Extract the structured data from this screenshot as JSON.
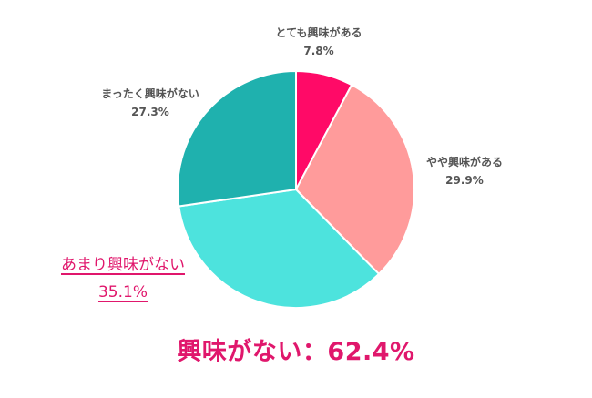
{
  "chart_data": {
    "type": "pie",
    "title": "",
    "start_angle_deg": 0,
    "direction": "clockwise",
    "center": [
      325,
      208
    ],
    "radius": 130,
    "slices": [
      {
        "label": "とても興味がある",
        "value": 7.8,
        "display": "7.8%",
        "color": "#ff0a67"
      },
      {
        "label": "やや興味がある",
        "value": 29.9,
        "display": "29.9%",
        "color": "#ff9b9b"
      },
      {
        "label": "あまり興味がない",
        "value": 35.1,
        "display": "35.1%",
        "color": "#4de3dd"
      },
      {
        "label": "まったく興味がない",
        "value": 27.3,
        "display": "27.3%",
        "color": "#1fb1ae"
      }
    ],
    "annotation": "興味がない：62.4%"
  },
  "labels": {
    "very_interested": {
      "name": "とても興味がある",
      "pct": "7.8%"
    },
    "somewhat_interested": {
      "name": "やや興味がある",
      "pct": "29.9%"
    },
    "not_very_interested": {
      "name": "あまり興味がない",
      "pct": "35.1%"
    },
    "not_at_all": {
      "name": "まったく興味がない",
      "pct": "27.3%"
    }
  },
  "summary": "興味がない：62.4%",
  "colors": {
    "accent": "#e0176c",
    "label_text": "#555555"
  }
}
